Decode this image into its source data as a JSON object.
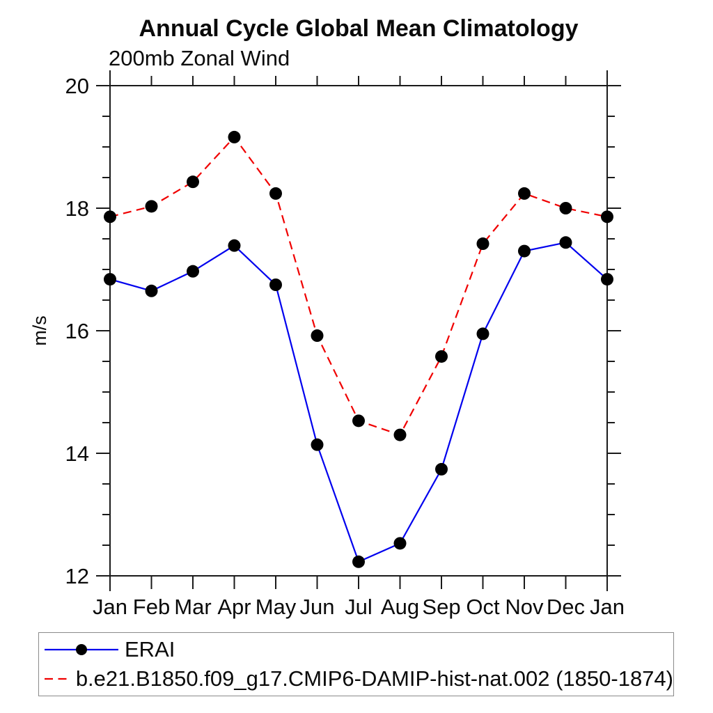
{
  "page": {
    "background": "#ffffff"
  },
  "chart_data": {
    "type": "line",
    "title": "Annual Cycle Global Mean Climatology",
    "subtitle": "200mb Zonal Wind",
    "xlabel": "",
    "ylabel": "m/s",
    "x_categories": [
      "Jan",
      "Feb",
      "Mar",
      "Apr",
      "May",
      "Jun",
      "Jul",
      "Aug",
      "Sep",
      "Oct",
      "Nov",
      "Dec",
      "Jan"
    ],
    "ylim": [
      12,
      20
    ],
    "y_major_ticks": [
      12,
      14,
      16,
      18,
      20
    ],
    "y_minor_step": 0.5,
    "grid": false,
    "legend_position": "bottom-left",
    "marker": "filled-circle",
    "marker_color": "#000000",
    "axis_color": "#1a1a1a",
    "series": [
      {
        "name": "ERAI",
        "color": "#0000ee",
        "dash": "solid",
        "values": [
          16.84,
          16.65,
          16.97,
          17.39,
          16.75,
          14.14,
          12.23,
          12.53,
          13.74,
          15.95,
          17.3,
          17.44,
          16.84
        ]
      },
      {
        "name": "b.e21.B1850.f09_g17.CMIP6-DAMIP-hist-nat.002 (1850-1874)",
        "color": "#f00000",
        "dash": "dashed",
        "values": [
          17.86,
          18.03,
          18.43,
          19.16,
          18.24,
          15.92,
          14.53,
          14.3,
          15.58,
          17.42,
          18.24,
          18.0,
          17.86
        ]
      }
    ]
  }
}
